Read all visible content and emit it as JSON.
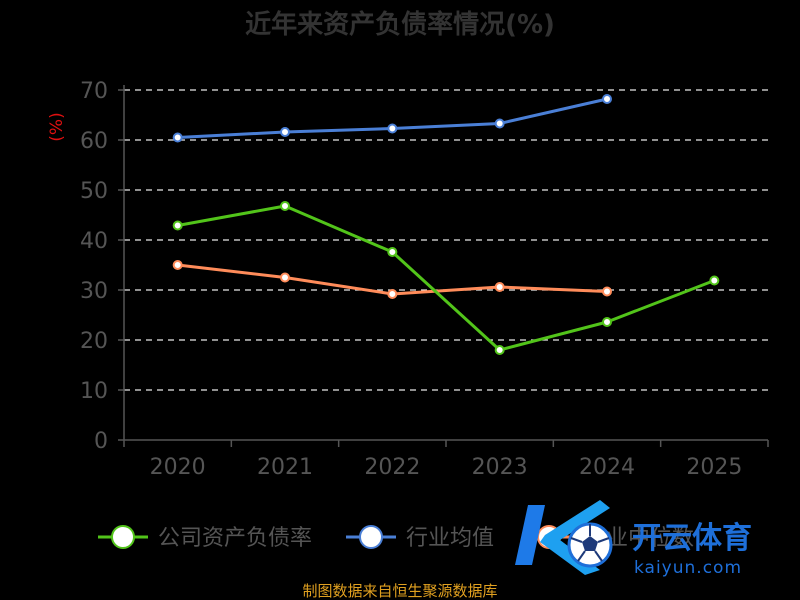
{
  "chart_data": {
    "type": "line",
    "title": "近年来资产负债率情况(%)",
    "unit_label": "(%)",
    "categories": [
      "2020",
      "2021",
      "2022",
      "2023",
      "2024",
      "2025"
    ],
    "yticks": [
      "0",
      "10",
      "20",
      "30",
      "40",
      "50",
      "60",
      "70"
    ],
    "ylim": [
      0,
      70
    ],
    "grid": "horizontal-dashed",
    "series": [
      {
        "name": "公司资产负债率",
        "color": "#52c41a",
        "values": [
          42.9,
          46.8,
          37.6,
          18.0,
          23.6,
          31.9
        ]
      },
      {
        "name": "行业均值",
        "color": "#4a7fd6",
        "values": [
          60.5,
          61.6,
          62.3,
          63.3,
          68.2,
          null
        ]
      },
      {
        "name": "行业中位数",
        "color": "#ff8c5a",
        "values": [
          35.0,
          32.5,
          29.2,
          30.6,
          29.7,
          null
        ]
      }
    ],
    "legend_position": "bottom",
    "source": "制图数据来自恒生聚源数据库"
  },
  "watermark": {
    "brand": "开云体育",
    "domain": "kaiyun.com",
    "icon": "ko-soccer-ball-logo"
  }
}
